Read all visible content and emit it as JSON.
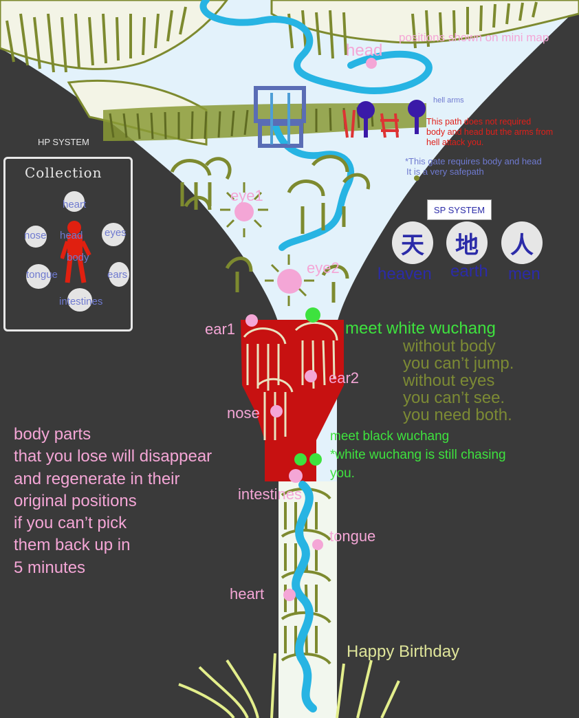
{
  "map": {
    "minimap_note": "positions shown on mini map",
    "head_label": "head",
    "eye1_label": "eye1",
    "eye2_label": "eye2",
    "ear1_label": "ear1",
    "ear2_label": "ear2",
    "nose_label": "nose",
    "intestines_label": "intestines",
    "tongue_label": "tongue",
    "heart_label": "heart"
  },
  "paths": {
    "arms_label": "hell arms",
    "arms_path_note_1": "This path does not required",
    "arms_path_note_2": "body and head but the arms from",
    "arms_path_note_3": "hell attack you.",
    "gate_note_1": "*This gate requires body and head",
    "gate_note_2": "It is a very safepath"
  },
  "hp_system": {
    "title": "HP SYSTEM",
    "collection_title": "Collection",
    "parts": {
      "heart": "heart",
      "nose": "nose",
      "head": "head",
      "eyes": "eyes",
      "body": "body",
      "tongue": "tongue",
      "ears": "ears",
      "intestines": "intestines"
    }
  },
  "sp_system": {
    "title": "SP SYSTEM",
    "items": [
      {
        "char": "天",
        "label": "heaven"
      },
      {
        "char": "地",
        "label": "earth"
      },
      {
        "char": "人",
        "label": "men"
      }
    ]
  },
  "events": {
    "white_wuchang": "meet white wuchang",
    "white_rule_1": "without body",
    "white_rule_2": "you can’t jump.",
    "white_rule_3": "without eyes",
    "white_rule_4": "you can’t see.",
    "white_rule_5": "you need both.",
    "black_wuchang": "meet black wuchang",
    "black_note_1": "*white wuchang is still chasing",
    "black_note_2": "you."
  },
  "rules": {
    "lines": [
      "body parts",
      "that you lose will disappear",
      "and regenerate in their",
      "original positions",
      "if you can’t pick",
      "them back up in",
      "5 minutes"
    ]
  },
  "footer": {
    "greeting": "Happy Birthday"
  },
  "colors": {
    "background": "#3a3a3a",
    "sky": "#e3f2fb",
    "grass": "#7d8a2f",
    "river": "#27b4e3",
    "blood": "#c71111",
    "pink_marker": "#f4a6d6",
    "label_green": "#3ee23e"
  }
}
